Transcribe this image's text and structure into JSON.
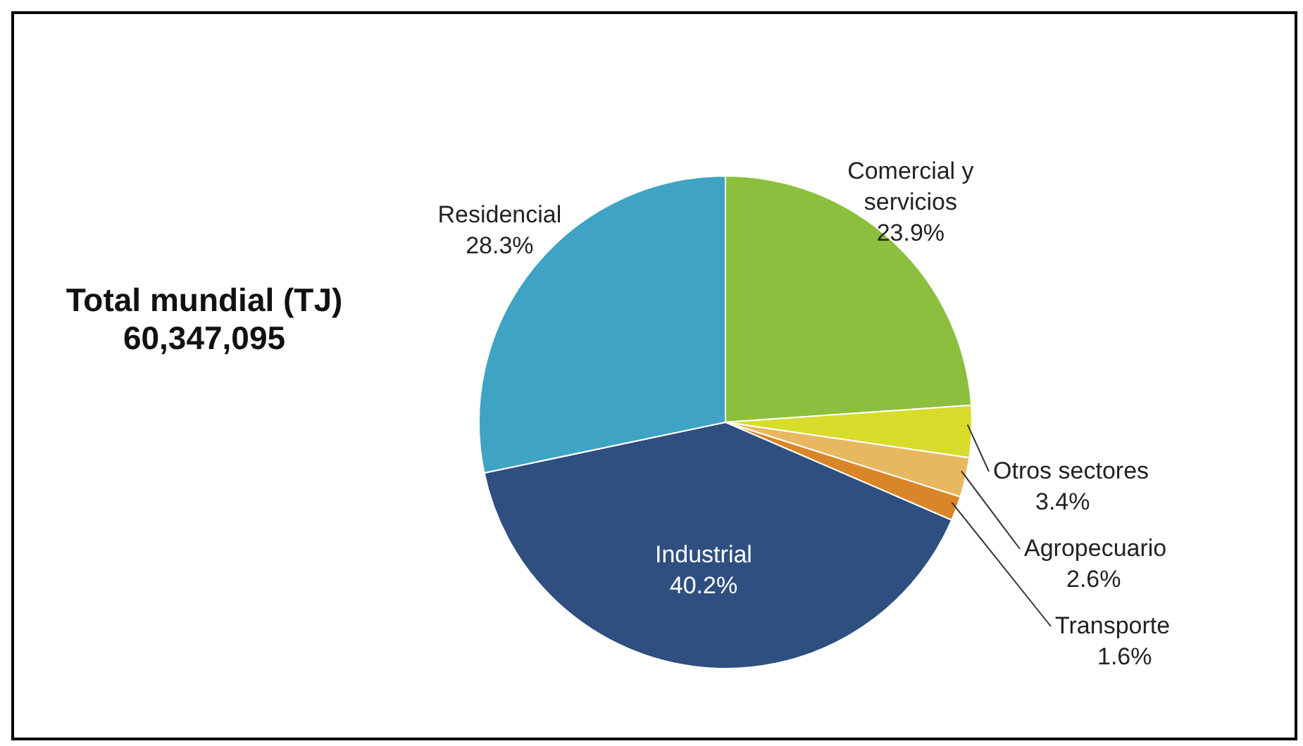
{
  "chart_data": {
    "type": "pie",
    "categories": [
      "Comercial y servicios",
      "Otros sectores",
      "Agropecuario",
      "Transporte",
      "Industrial",
      "Residencial"
    ],
    "values": [
      23.9,
      3.4,
      2.6,
      1.6,
      40.2,
      28.3
    ],
    "colors": [
      "#8dbf3f",
      "#d8dc2a",
      "#e8b860",
      "#d9862a",
      "#2e4f7f",
      "#3fa3c4"
    ],
    "value_labels": [
      "23.9%",
      "3.4%",
      "2.6%",
      "1.6%",
      "40.2%",
      "28.3%"
    ],
    "annotations": [
      "Total mundial (TJ)",
      "60,347,095"
    ],
    "legend": false
  }
}
